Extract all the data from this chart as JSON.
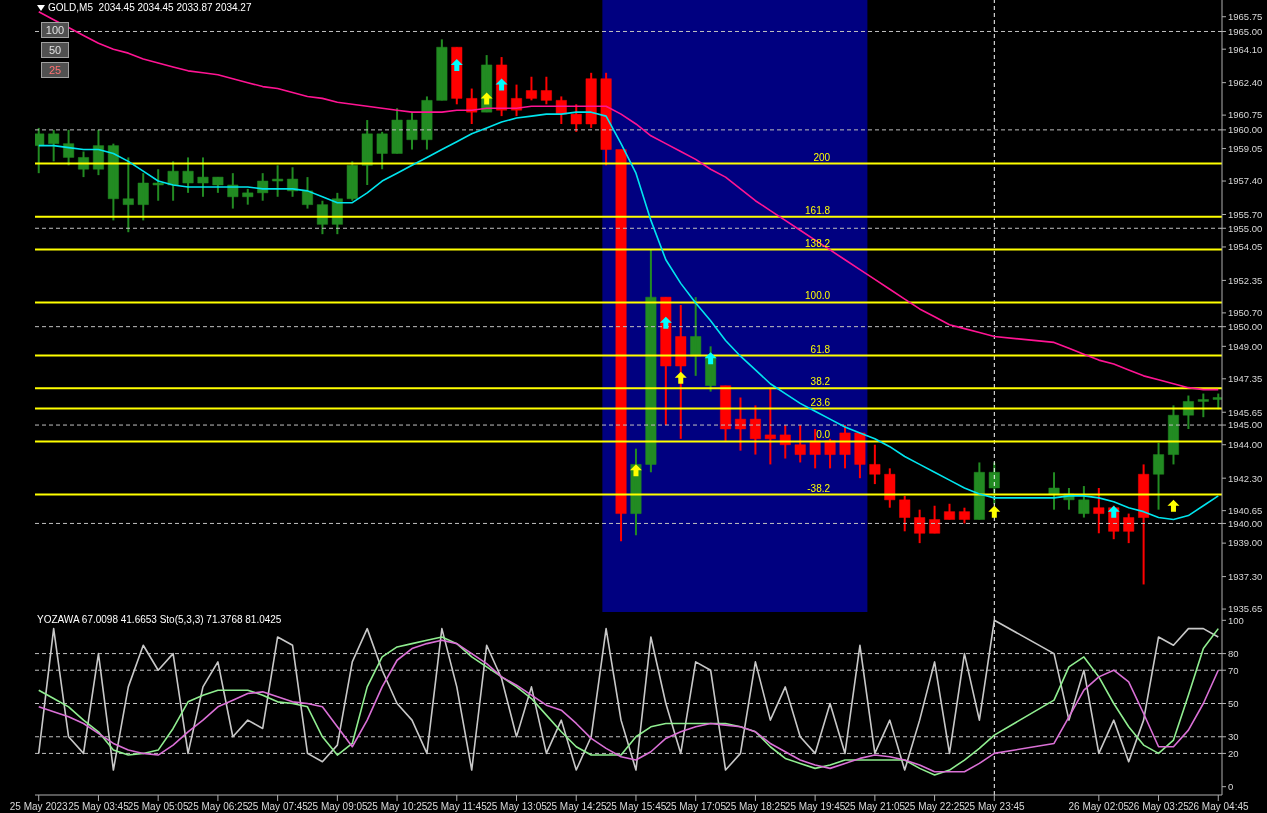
{
  "chart_data": [
    {
      "type": "candlestick",
      "title": "GOLD,M5  2034.45 2034.45 2033.87 2034.27",
      "annotations": [
        "100",
        "50",
        "25",
        {
          "text": "200",
          "x": "2023-05-25T20:05",
          "y": 1958.29
        },
        {
          "text": "161.8",
          "x": "2023-05-25T20:05",
          "y": 1955.59
        },
        {
          "text": "138.2",
          "x": "2023-05-25T20:05",
          "y": 1953.92
        },
        {
          "text": "100.0",
          "x": "2023-05-25T20:05",
          "y": 1951.23
        },
        {
          "text": "61.8",
          "x": "2023-05-25T20:05",
          "y": 1948.53
        },
        {
          "text": "38.2",
          "x": "2023-05-25T20:05",
          "y": 1946.87
        },
        {
          "text": "23.6",
          "x": "2023-05-25T20:05",
          "y": 1945.84
        },
        {
          "text": "0.0",
          "x": "2023-05-25T20:05",
          "y": 1944.17
        },
        {
          "text": "-38.2",
          "x": "2023-05-25T20:05",
          "y": 1941.47
        }
      ],
      "tick_labels": "y",
      "x": [
        "2023-05-25T02:25",
        "2023-05-25T02:45",
        "2023-05-25T03:05",
        "2023-05-25T03:25",
        "2023-05-25T03:45",
        "2023-05-25T04:05",
        "2023-05-25T04:25",
        "2023-05-25T04:45",
        "2023-05-25T05:05",
        "2023-05-25T05:25",
        "2023-05-25T05:45",
        "2023-05-25T06:05",
        "2023-05-25T06:25",
        "2023-05-25T06:45",
        "2023-05-25T07:05",
        "2023-05-25T07:25",
        "2023-05-25T07:45",
        "2023-05-25T08:05",
        "2023-05-25T08:25",
        "2023-05-25T08:45",
        "2023-05-25T09:05",
        "2023-05-25T09:25",
        "2023-05-25T09:45",
        "2023-05-25T10:05",
        "2023-05-25T10:25",
        "2023-05-25T10:45",
        "2023-05-25T11:05",
        "2023-05-25T11:25",
        "2023-05-25T11:45",
        "2023-05-25T12:05",
        "2023-05-25T12:25",
        "2023-05-25T12:45",
        "2023-05-25T13:05",
        "2023-05-25T13:25",
        "2023-05-25T13:45",
        "2023-05-25T14:05",
        "2023-05-25T14:25",
        "2023-05-25T14:45",
        "2023-05-25T15:05",
        "2023-05-25T15:25",
        "2023-05-25T15:45",
        "2023-05-25T16:05",
        "2023-05-25T16:25",
        "2023-05-25T16:45",
        "2023-05-25T17:05",
        "2023-05-25T17:25",
        "2023-05-25T17:45",
        "2023-05-25T18:05",
        "2023-05-25T18:25",
        "2023-05-25T18:45",
        "2023-05-25T19:05",
        "2023-05-25T19:25",
        "2023-05-25T19:45",
        "2023-05-25T20:05",
        "2023-05-25T20:25",
        "2023-05-25T20:45",
        "2023-05-25T21:05",
        "2023-05-25T21:25",
        "2023-05-25T21:45",
        "2023-05-25T22:05",
        "2023-05-25T22:25",
        "2023-05-25T22:45",
        "2023-05-25T23:05",
        "2023-05-25T23:25",
        "2023-05-25T23:45",
        "2023-05-26T01:05",
        "2023-05-26T01:25",
        "2023-05-26T01:45",
        "2023-05-26T02:05",
        "2023-05-26T02:25",
        "2023-05-26T02:45",
        "2023-05-26T03:05",
        "2023-05-26T03:25",
        "2023-05-26T03:45",
        "2023-05-26T04:05",
        "2023-05-26T04:25",
        "2023-05-26T04:45"
      ],
      "ohlc": [
        [
          1959.2,
          1960.1,
          1957.8,
          1959.8
        ],
        [
          1959.3,
          1960,
          1958.4,
          1959.8
        ],
        [
          1958.6,
          1960,
          1958.2,
          1959.3
        ],
        [
          1958,
          1958.9,
          1957.6,
          1958.6
        ],
        [
          1958,
          1960,
          1957.7,
          1959.2
        ],
        [
          1956.5,
          1959.3,
          1955.4,
          1959.2
        ],
        [
          1956.2,
          1958.6,
          1954.8,
          1956.5
        ],
        [
          1956.2,
          1957.8,
          1955.4,
          1957.3
        ],
        [
          1957.2,
          1958,
          1956.4,
          1957.3
        ],
        [
          1957.2,
          1958.4,
          1956.4,
          1957.9
        ],
        [
          1957.3,
          1958.6,
          1956.8,
          1957.9
        ],
        [
          1957.3,
          1958.6,
          1956.6,
          1957.6
        ],
        [
          1957.2,
          1957.6,
          1956.8,
          1957.6
        ],
        [
          1956.6,
          1957.8,
          1956,
          1957.2
        ],
        [
          1956.6,
          1957,
          1956.2,
          1956.8
        ],
        [
          1956.8,
          1957.8,
          1956.4,
          1957.4
        ],
        [
          1957.4,
          1958.2,
          1956.6,
          1957.5
        ],
        [
          1956.9,
          1958.1,
          1956.6,
          1957.5
        ],
        [
          1956.2,
          1957.6,
          1956,
          1956.9
        ],
        [
          1955.2,
          1956.4,
          1954.7,
          1956.2
        ],
        [
          1955.2,
          1956.8,
          1954.7,
          1956.5
        ],
        [
          1956.5,
          1958.4,
          1956.4,
          1958.2
        ],
        [
          1958.2,
          1960.5,
          1957.2,
          1959.8
        ],
        [
          1958.8,
          1959.9,
          1958,
          1959.8
        ],
        [
          1958.8,
          1961.1,
          1958.8,
          1960.5
        ],
        [
          1959.5,
          1960.9,
          1959,
          1960.5
        ],
        [
          1959.5,
          1961.7,
          1959,
          1961.5
        ],
        [
          1961.5,
          1964.6,
          1961.5,
          1964.2
        ],
        [
          1964.2,
          1964.2,
          1961.3,
          1961.6
        ],
        [
          1961.6,
          1962.1,
          1960.3,
          1960.9
        ],
        [
          1960.9,
          1963.8,
          1960.9,
          1963.3
        ],
        [
          1963.3,
          1963.7,
          1960.7,
          1961
        ],
        [
          1961.6,
          1962.3,
          1960.7,
          1961
        ],
        [
          1962,
          1962.7,
          1961.5,
          1961.6
        ],
        [
          1962,
          1962.7,
          1961.3,
          1961.5
        ],
        [
          1961.5,
          1961.7,
          1960.3,
          1960.8
        ],
        [
          1960.8,
          1961.3,
          1959.9,
          1960.3
        ],
        [
          1962.6,
          1962.9,
          1960.1,
          1960.3
        ],
        [
          1962.6,
          1962.9,
          1958.2,
          1959
        ],
        [
          1959,
          1959,
          1939.1,
          1940.5
        ],
        [
          1940.5,
          1943.8,
          1939.4,
          1943
        ],
        [
          1943,
          1953.9,
          1942.6,
          1951.5
        ],
        [
          1951.5,
          1951.5,
          1945,
          1948
        ],
        [
          1949.5,
          1951.1,
          1944.3,
          1948
        ],
        [
          1948.5,
          1951.5,
          1947.5,
          1949.5
        ],
        [
          1947,
          1949,
          1946.7,
          1948.5
        ],
        [
          1947,
          1947,
          1944.2,
          1944.8
        ],
        [
          1945.3,
          1946.4,
          1943.7,
          1944.8
        ],
        [
          1945.3,
          1946,
          1943.5,
          1944.3
        ],
        [
          1944.5,
          1946.9,
          1943,
          1944.3
        ],
        [
          1944.5,
          1945,
          1943.3,
          1944
        ],
        [
          1944,
          1945,
          1943.1,
          1943.5
        ],
        [
          1944.2,
          1944.8,
          1942.8,
          1943.5
        ],
        [
          1944.2,
          1944.3,
          1942.8,
          1943.5
        ],
        [
          1944.6,
          1945,
          1942.8,
          1943.5
        ],
        [
          1944.6,
          1944.6,
          1942.3,
          1943
        ],
        [
          1943,
          1944,
          1942,
          1942.5
        ],
        [
          1942.5,
          1942.8,
          1940.8,
          1941.2
        ],
        [
          1941.2,
          1941.4,
          1939.6,
          1940.3
        ],
        [
          1940.3,
          1940.7,
          1939,
          1939.5
        ],
        [
          1940.2,
          1940.9,
          1939.5,
          1939.5
        ],
        [
          1940.6,
          1941,
          1940.2,
          1940.2
        ],
        [
          1940.6,
          1940.8,
          1940,
          1940.2
        ],
        [
          1940.2,
          1943.1,
          1940.2,
          1942.6
        ],
        [
          1941.8,
          1943.1,
          1941.0,
          1942.6
        ],
        [
          1941.5,
          1942.6,
          1940.7,
          1941.8
        ],
        [
          1941.2,
          1941.8,
          1940.7,
          1941.5
        ],
        [
          1940.5,
          1941.9,
          1940.3,
          1941.2
        ],
        [
          1940.8,
          1941.8,
          1939.5,
          1940.5
        ],
        [
          1940.8,
          1940.9,
          1939.2,
          1939.6
        ],
        [
          1940.3,
          1940.5,
          1939,
          1939.6
        ],
        [
          1942.5,
          1943,
          1936.9,
          1940.3
        ],
        [
          1942.5,
          1944.1,
          1940.7,
          1943.5
        ],
        [
          1943.5,
          1946,
          1943,
          1945.5
        ],
        [
          1945.5,
          1946.5,
          1944.8,
          1946.2
        ],
        [
          1946.2,
          1946.6,
          1945.4,
          1946.3
        ],
        [
          1946.3,
          1946.6,
          1945.8,
          1946.4
        ]
      ],
      "colors": [
        "#228b22",
        "#228b22",
        "#228b22",
        "#228b22",
        "#228b22",
        "#228b22",
        "#228b22",
        "#228b22",
        "#228b22",
        "#228b22",
        "#228b22",
        "#228b22",
        "#228b22",
        "#228b22",
        "#228b22",
        "#228b22",
        "#228b22",
        "#228b22",
        "#228b22",
        "#228b22",
        "#228b22",
        "#228b22",
        "#228b22",
        "#228b22",
        "#228b22",
        "#228b22",
        "#228b22",
        "#228b22",
        "#ff0000",
        "#ff0000",
        "#228b22",
        "#ff0000",
        "#ff0000",
        "#ff0000",
        "#ff0000",
        "#ff0000",
        "#ff0000",
        "#ff0000",
        "#ff0000",
        "#ff0000",
        "#228b22",
        "#228b22",
        "#ff0000",
        "#ff0000",
        "#228b22",
        "#228b22",
        "#ff0000",
        "#ff0000",
        "#ff0000",
        "#ff0000",
        "#ff0000",
        "#ff0000",
        "#ff0000",
        "#ff0000",
        "#ff0000",
        "#ff0000",
        "#ff0000",
        "#ff0000",
        "#ff0000",
        "#ff0000",
        "#ff0000",
        "#ff0000",
        "#ff0000",
        "#228b22",
        "#228b22",
        "#228b22",
        "#228b22",
        "#228b22",
        "#ff0000",
        "#ff0000",
        "#ff0000",
        "#ff0000",
        "#228b22",
        "#228b22",
        "#228b22",
        "#228b22",
        "#228b22"
      ],
      "series": [
        {
          "type": "line",
          "color": "#ff1493",
          "values": [
            1966.0,
            1965.6,
            1965.2,
            1964.8,
            1964.4,
            1964.1,
            1963.9,
            1963.6,
            1963.4,
            1963.2,
            1963.0,
            1962.9,
            1962.8,
            1962.6,
            1962.4,
            1962.2,
            1962.1,
            1961.9,
            1961.7,
            1961.6,
            1961.4,
            1961.3,
            1961.2,
            1961.1,
            1961.0,
            1960.9,
            1960.9,
            1960.9,
            1961.0,
            1961.0,
            1961.1,
            1961.1,
            1961.1,
            1961.2,
            1961.2,
            1961.2,
            1961.2,
            1961.2,
            1961.2,
            1960.8,
            1960.3,
            1959.7,
            1959.3,
            1958.9,
            1958.5,
            1958.0,
            1957.6,
            1957.0,
            1956.4,
            1955.9,
            1955.4,
            1954.9,
            1954.4,
            1953.9,
            1953.4,
            1952.9,
            1952.4,
            1951.9,
            1951.4,
            1950.9,
            1950.5,
            1950.1,
            1949.9,
            1949.7,
            1949.5,
            1949.2,
            1948.9,
            1948.6,
            1948.3,
            1948.1,
            1947.8,
            1947.5,
            1947.3,
            1947.1,
            1946.9,
            1946.8,
            1946.8
          ]
        },
        {
          "type": "line",
          "color": "#00e5ee",
          "values": [
            1959.2,
            1959.2,
            1959.1,
            1959.0,
            1959.0,
            1958.8,
            1958.4,
            1957.9,
            1957.4,
            1957.2,
            1957.1,
            1957.1,
            1957.1,
            1957.1,
            1957.1,
            1957.0,
            1957.0,
            1957.0,
            1956.9,
            1956.6,
            1956.3,
            1956.3,
            1956.8,
            1957.4,
            1957.8,
            1958.2,
            1958.6,
            1959.0,
            1959.4,
            1959.8,
            1960.1,
            1960.4,
            1960.6,
            1960.7,
            1960.8,
            1960.8,
            1960.9,
            1960.9,
            1960.7,
            1959.3,
            1957.8,
            1955.4,
            1953.4,
            1952.2,
            1951.2,
            1950.3,
            1949.3,
            1948.5,
            1947.8,
            1947.1,
            1946.6,
            1946.1,
            1945.7,
            1945.3,
            1944.9,
            1944.6,
            1944.3,
            1943.9,
            1943.4,
            1943.0,
            1942.6,
            1942.2,
            1941.8,
            1941.5,
            1941.3,
            1941.3,
            1941.4,
            1941.4,
            1941.3,
            1941.1,
            1940.8,
            1940.6,
            1940.3,
            1940.2,
            1940.4,
            1940.9,
            1941.4
          ]
        },
        {
          "type": "scatter",
          "color": "#ffff00",
          "marker": "triangle",
          "values": [
            null,
            null,
            null,
            null,
            null,
            null,
            null,
            null,
            null,
            null,
            null,
            null,
            null,
            null,
            null,
            null,
            null,
            null,
            null,
            null,
            null,
            null,
            null,
            null,
            null,
            null,
            null,
            null,
            null,
            null,
            1961.6,
            null,
            null,
            null,
            null,
            null,
            null,
            null,
            null,
            null,
            1942.7,
            null,
            null,
            1947.4,
            null,
            null,
            null,
            null,
            null,
            null,
            null,
            null,
            null,
            null,
            null,
            null,
            null,
            null,
            null,
            null,
            null,
            null,
            null,
            null,
            1940.6,
            null,
            null,
            null,
            null,
            null,
            null,
            null,
            null,
            1940.9,
            null,
            null,
            null
          ]
        },
        {
          "type": "scatter",
          "color": "#00ffff",
          "marker": "triangle",
          "values": [
            null,
            null,
            null,
            null,
            null,
            null,
            null,
            null,
            null,
            null,
            null,
            null,
            null,
            null,
            null,
            null,
            null,
            null,
            null,
            null,
            null,
            null,
            null,
            null,
            null,
            null,
            null,
            null,
            1963.3,
            null,
            null,
            1962.3,
            null,
            null,
            null,
            null,
            null,
            null,
            null,
            null,
            null,
            null,
            1950.2,
            null,
            null,
            1948.4,
            null,
            null,
            null,
            null,
            null,
            null,
            null,
            null,
            null,
            null,
            null,
            null,
            null,
            null,
            null,
            null,
            null,
            null,
            null,
            null,
            null,
            null,
            null,
            1940.6,
            null,
            null,
            null,
            null,
            null,
            null,
            null
          ]
        }
      ],
      "xlim": [
        "2023-05-25T02:20",
        "2023-05-26T04:50"
      ],
      "ylim": [
        1935.5,
        1966.6
      ],
      "yticks": [
        {
          "value": 1935.65,
          "label": "1935.65"
        },
        {
          "value": 1937.3,
          "label": "1937.30"
        },
        {
          "value": 1939,
          "label": "1939.00"
        },
        {
          "value": 1940,
          "label": "1940.00"
        },
        {
          "value": 1940.65,
          "label": "1940.65"
        },
        {
          "value": 1942.3,
          "label": "1942.30"
        },
        {
          "value": 1944,
          "label": "1944.00"
        },
        {
          "value": 1945,
          "label": "1945.00"
        },
        {
          "value": 1945.65,
          "label": "1945.65"
        },
        {
          "value": 1947.35,
          "label": "1947.35"
        },
        {
          "value": 1949,
          "label": "1949.00"
        },
        {
          "value": 1950,
          "label": "1950.00"
        },
        {
          "value": 1950.7,
          "label": "1950.70"
        },
        {
          "value": 1952.35,
          "label": "1952.35"
        },
        {
          "value": 1954.05,
          "label": "1954.05"
        },
        {
          "value": 1955,
          "label": "1955.00"
        },
        {
          "value": 1955.7,
          "label": "1955.70"
        },
        {
          "value": 1957.4,
          "label": "1957.40"
        },
        {
          "value": 1959.05,
          "label": "1959.05"
        },
        {
          "value": 1960,
          "label": "1960.00"
        },
        {
          "value": 1960.75,
          "label": "1960.75"
        },
        {
          "value": 1962.4,
          "label": "1962.40"
        },
        {
          "value": 1964.1,
          "label": "1964.10"
        },
        {
          "value": 1965,
          "label": "1965.00"
        },
        {
          "value": 1965.75,
          "label": "1965.75"
        }
      ],
      "bands": [
        {
          "axis": "x",
          "from": "2023-05-25T15:00",
          "to": "2023-05-25T20:55",
          "color": "#000080"
        }
      ],
      "ref_lines": [
        {
          "axis": "y",
          "value": 1940,
          "color": "#c0c0c0",
          "line_style": "dashed"
        },
        {
          "axis": "y",
          "value": 1945,
          "color": "#c0c0c0",
          "line_style": "dashed"
        },
        {
          "axis": "y",
          "value": 1950,
          "color": "#c0c0c0",
          "line_style": "dashed"
        },
        {
          "axis": "y",
          "value": 1955,
          "color": "#c0c0c0",
          "line_style": "dashed"
        },
        {
          "axis": "y",
          "value": 1960,
          "color": "#c0c0c0",
          "line_style": "dashed"
        },
        {
          "axis": "y",
          "value": 1965,
          "color": "#c0c0c0",
          "line_style": "dashed"
        },
        {
          "axis": "x",
          "value": "2023-05-25T23:45",
          "color": "#ffffff",
          "line_style": "dashed"
        },
        {
          "axis": "y",
          "value": 1958.29,
          "color": "#ffff00"
        },
        {
          "axis": "y",
          "value": 1955.59,
          "color": "#ffff00"
        },
        {
          "axis": "y",
          "value": 1953.92,
          "color": "#ffff00"
        },
        {
          "axis": "y",
          "value": 1951.23,
          "color": "#ffff00"
        },
        {
          "axis": "y",
          "value": 1948.53,
          "color": "#ffff00"
        },
        {
          "axis": "y",
          "value": 1946.87,
          "color": "#ffff00"
        },
        {
          "axis": "y",
          "value": 1945.84,
          "color": "#ffff00"
        },
        {
          "axis": "y",
          "value": 1944.17,
          "color": "#ffff00"
        },
        {
          "axis": "y",
          "value": 1941.47,
          "color": "#ffff00"
        }
      ]
    },
    {
      "type": "line",
      "title": "YOZAWA 67.0098 41.6653 Sto(5,3,3) 71.3768 81.0425",
      "x": [
        "2023-05-25T02:25",
        "2023-05-25T02:45",
        "2023-05-25T03:05",
        "2023-05-25T03:25",
        "2023-05-25T03:45",
        "2023-05-25T04:05",
        "2023-05-25T04:25",
        "2023-05-25T04:45",
        "2023-05-25T05:05",
        "2023-05-25T05:25",
        "2023-05-25T05:45",
        "2023-05-25T06:05",
        "2023-05-25T06:25",
        "2023-05-25T06:45",
        "2023-05-25T07:05",
        "2023-05-25T07:25",
        "2023-05-25T07:45",
        "2023-05-25T08:05",
        "2023-05-25T08:25",
        "2023-05-25T08:45",
        "2023-05-25T09:05",
        "2023-05-25T09:25",
        "2023-05-25T09:45",
        "2023-05-25T10:05",
        "2023-05-25T10:25",
        "2023-05-25T10:45",
        "2023-05-25T11:05",
        "2023-05-25T11:25",
        "2023-05-25T11:45",
        "2023-05-25T12:05",
        "2023-05-25T12:25",
        "2023-05-25T12:45",
        "2023-05-25T13:05",
        "2023-05-25T13:25",
        "2023-05-25T13:45",
        "2023-05-25T14:05",
        "2023-05-25T14:25",
        "2023-05-25T14:45",
        "2023-05-25T15:05",
        "2023-05-25T15:25",
        "2023-05-25T15:45",
        "2023-05-25T16:05",
        "2023-05-25T16:25",
        "2023-05-25T16:45",
        "2023-05-25T17:05",
        "2023-05-25T17:25",
        "2023-05-25T17:45",
        "2023-05-25T18:05",
        "2023-05-25T18:25",
        "2023-05-25T18:45",
        "2023-05-25T19:05",
        "2023-05-25T19:25",
        "2023-05-25T19:45",
        "2023-05-25T20:05",
        "2023-05-25T20:25",
        "2023-05-25T20:45",
        "2023-05-25T21:05",
        "2023-05-25T21:25",
        "2023-05-25T21:45",
        "2023-05-25T22:05",
        "2023-05-25T22:25",
        "2023-05-25T22:45",
        "2023-05-25T23:05",
        "2023-05-25T23:25",
        "2023-05-25T23:45",
        "2023-05-26T01:05",
        "2023-05-26T01:25",
        "2023-05-26T01:45",
        "2023-05-26T02:05",
        "2023-05-26T02:25",
        "2023-05-26T02:45",
        "2023-05-26T03:05",
        "2023-05-26T03:25",
        "2023-05-26T03:45",
        "2023-05-26T04:05",
        "2023-05-26T04:25",
        "2023-05-26T04:45"
      ],
      "series": [
        {
          "color": "#c8c8c8",
          "values": [
            20,
            95,
            30,
            20,
            80,
            10,
            60,
            85,
            70,
            80,
            20,
            60,
            75,
            30,
            40,
            35,
            90,
            85,
            20,
            15,
            25,
            75,
            95,
            70,
            50,
            40,
            20,
            95,
            60,
            10,
            85,
            65,
            30,
            60,
            20,
            40,
            10,
            30,
            95,
            40,
            10,
            90,
            50,
            20,
            75,
            70,
            10,
            20,
            75,
            40,
            60,
            30,
            20,
            50,
            20,
            85,
            20,
            40,
            10,
            40,
            75,
            20,
            80,
            40,
            100,
            80,
            40,
            70,
            20,
            40,
            15,
            40,
            90,
            85,
            95,
            95,
            90
          ]
        },
        {
          "color": "#90ee90",
          "values": [
            58,
            53,
            48,
            40,
            33,
            22,
            19,
            20,
            22,
            35,
            51,
            55,
            58,
            58,
            58,
            55,
            51,
            50,
            48,
            30,
            19,
            26,
            60,
            78,
            84,
            86,
            88,
            90,
            86,
            78,
            72,
            66,
            60,
            53,
            43,
            33,
            24,
            19,
            19,
            19,
            30,
            36,
            38,
            38,
            38,
            38,
            38,
            36,
            33,
            24,
            17,
            14,
            11,
            13,
            16,
            16,
            16,
            16,
            16,
            11,
            7,
            10,
            16,
            23,
            31,
            52,
            72,
            78,
            66,
            50,
            36,
            25,
            20,
            28,
            55,
            83,
            95
          ]
        },
        {
          "color": "#da70d6",
          "values": [
            48,
            45,
            42,
            38,
            32,
            26,
            22,
            20,
            19,
            25,
            33,
            40,
            48,
            52,
            56,
            57,
            54,
            51,
            50,
            48,
            36,
            24,
            40,
            60,
            76,
            83,
            86,
            88,
            86,
            80,
            74,
            66,
            61,
            55,
            49,
            46,
            38,
            29,
            23,
            18,
            16,
            21,
            29,
            33,
            36,
            38,
            37,
            36,
            33,
            26,
            21,
            16,
            13,
            11,
            14,
            17,
            19,
            18,
            16,
            13,
            9,
            9,
            9,
            14,
            20,
            26,
            42,
            58,
            66,
            70,
            63,
            44,
            24,
            24,
            34,
            50,
            70
          ]
        }
      ],
      "xlim": [
        "2023-05-25T02:20",
        "2023-05-26T04:50"
      ],
      "xticks": [
        {
          "value": "2023-05-25T02:25",
          "label": "25 May 2023"
        },
        {
          "value": "2023-05-25T03:45",
          "label": "25 May 03:45"
        },
        {
          "value": "2023-05-25T05:05",
          "label": "25 May 05:05"
        },
        {
          "value": "2023-05-25T06:25",
          "label": "25 May 06:25"
        },
        {
          "value": "2023-05-25T07:45",
          "label": "25 May 07:45"
        },
        {
          "value": "2023-05-25T09:05",
          "label": "25 May 09:05"
        },
        {
          "value": "2023-05-25T10:25",
          "label": "25 May 10:25"
        },
        {
          "value": "2023-05-25T11:45",
          "label": "25 May 11:45"
        },
        {
          "value": "2023-05-25T13:05",
          "label": "25 May 13:05"
        },
        {
          "value": "2023-05-25T14:25",
          "label": "25 May 14:25"
        },
        {
          "value": "2023-05-25T15:45",
          "label": "25 May 15:45"
        },
        {
          "value": "2023-05-25T17:05",
          "label": "25 May 17:05"
        },
        {
          "value": "2023-05-25T18:25",
          "label": "25 May 18:25"
        },
        {
          "value": "2023-05-25T19:45",
          "label": "25 May 19:45"
        },
        {
          "value": "2023-05-25T21:05",
          "label": "25 May 21:05"
        },
        {
          "value": "2023-05-25T22:25",
          "label": "25 May 22:25"
        },
        {
          "value": "2023-05-25T23:45",
          "label": "25 May 23:45"
        },
        {
          "value": "2023-05-26T02:05",
          "label": "26 May 02:05"
        },
        {
          "value": "2023-05-26T03:25",
          "label": "26 May 03:25"
        },
        {
          "value": "2023-05-26T04:45",
          "label": "26 May 04:45"
        }
      ],
      "ylim": [
        -5,
        105
      ],
      "yticks": [
        0,
        20,
        30,
        50,
        70,
        80,
        100
      ],
      "ref_lines": [
        {
          "axis": "y",
          "value": 20,
          "color": "#c0c0c0",
          "line_style": "dashed"
        },
        {
          "axis": "y",
          "value": 30,
          "color": "#c0c0c0",
          "line_style": "dashed"
        },
        {
          "axis": "y",
          "value": 50,
          "color": "#c0c0c0",
          "line_style": "dashed"
        },
        {
          "axis": "y",
          "value": 70,
          "color": "#c0c0c0",
          "line_style": "dashed"
        },
        {
          "axis": "y",
          "value": 80,
          "color": "#c0c0c0",
          "line_style": "dashed"
        },
        {
          "axis": "x",
          "value": "2023-05-25T23:45",
          "color": "#ffffff",
          "line_style": "dashed"
        }
      ]
    }
  ]
}
